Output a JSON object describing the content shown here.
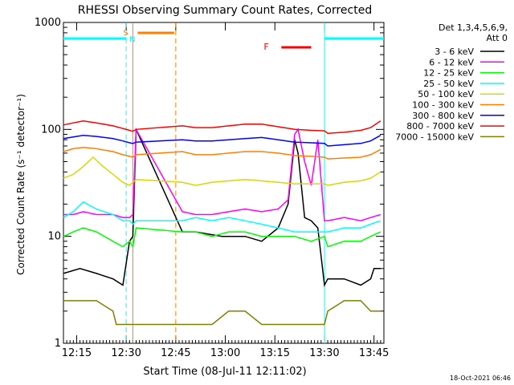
{
  "chart_data": {
    "type": "line",
    "title": "RHESSI Observing Summary Count Rates, Corrected",
    "xlabel": "Start Time (08-Jul-11 12:11:02)",
    "ylabel": "Corrected Count Rate (s⁻¹ detector⁻¹)",
    "ylog": true,
    "ylim": [
      1,
      1000
    ],
    "xlim_minutes": [
      0,
      97
    ],
    "x_ticks": [
      {
        "label": "12:15",
        "min": 4
      },
      {
        "label": "12:30",
        "min": 19
      },
      {
        "label": "12:45",
        "min": 34
      },
      {
        "label": "13:00",
        "min": 49
      },
      {
        "label": "13:15",
        "min": 64
      },
      {
        "label": "13:30",
        "min": 79
      },
      {
        "label": "13:45",
        "min": 94
      }
    ],
    "y_ticks": [
      {
        "label": "1",
        "value": 1
      },
      {
        "label": "10",
        "value": 10
      },
      {
        "label": "100",
        "value": 100
      },
      {
        "label": "1000",
        "value": 1000
      }
    ],
    "legend_header": [
      "Det 1,3,4,5,6,9,",
      "Att 0"
    ],
    "series": [
      {
        "name": "3 - 6 keV",
        "color": "#000000",
        "x": [
          0,
          5,
          10,
          15,
          18,
          20,
          21,
          22,
          36,
          40,
          48,
          55,
          60,
          65,
          68,
          70,
          71,
          73,
          75,
          77,
          79,
          80,
          85,
          90,
          93,
          94,
          96
        ],
        "y": [
          4.5,
          5,
          4.5,
          4,
          3.5,
          9,
          10,
          100,
          11,
          11,
          10,
          10,
          9,
          12,
          20,
          80,
          60,
          15,
          14,
          12,
          3.5,
          4,
          4,
          3.5,
          4,
          5,
          5
        ]
      },
      {
        "name": "6 - 12 keV",
        "color": "#ff00ff",
        "x": [
          0,
          3,
          6,
          10,
          15,
          18,
          20,
          21,
          22,
          36,
          40,
          45,
          50,
          55,
          60,
          65,
          68,
          70,
          71,
          73,
          75,
          77,
          79,
          80,
          85,
          90,
          93,
          96
        ],
        "y": [
          16,
          16,
          17,
          16,
          16,
          15,
          15,
          16,
          100,
          17,
          16,
          16,
          17,
          18,
          17,
          18,
          22,
          90,
          100,
          50,
          30,
          80,
          14,
          14,
          15,
          14,
          15,
          16
        ]
      },
      {
        "name": "12 - 25 keV",
        "color": "#00ff00",
        "x": [
          0,
          3,
          6,
          10,
          15,
          18,
          20,
          21,
          22,
          36,
          40,
          45,
          50,
          55,
          60,
          65,
          70,
          75,
          79,
          80,
          85,
          90,
          93,
          96
        ],
        "y": [
          10,
          11,
          12,
          11,
          9,
          8,
          9,
          8,
          12,
          11,
          11,
          10,
          11,
          11,
          10,
          10,
          10,
          9,
          10,
          8,
          9,
          9,
          10,
          11
        ]
      },
      {
        "name": "25 - 50 keV",
        "color": "#00ffff",
        "x": [
          0,
          3,
          6,
          10,
          15,
          18,
          20,
          21,
          22,
          36,
          40,
          45,
          50,
          55,
          60,
          65,
          70,
          75,
          79,
          80,
          85,
          90,
          93,
          96
        ],
        "y": [
          15,
          17,
          21,
          18,
          16,
          14,
          14,
          13,
          14,
          14,
          15,
          14,
          15,
          14,
          13,
          12,
          11,
          11,
          11,
          11,
          12,
          12,
          13,
          14
        ]
      },
      {
        "name": "50 - 100 keV",
        "color": "#d8d800",
        "x": [
          0,
          3,
          6,
          9,
          12,
          15,
          18,
          20,
          21,
          22,
          36,
          40,
          45,
          50,
          55,
          60,
          65,
          70,
          75,
          79,
          80,
          85,
          90,
          93,
          96
        ],
        "y": [
          35,
          38,
          45,
          55,
          45,
          38,
          32,
          30,
          32,
          34,
          32,
          30,
          32,
          33,
          34,
          33,
          32,
          31,
          31,
          31,
          30,
          32,
          33,
          35,
          40
        ]
      },
      {
        "name": "100 - 300 keV",
        "color": "#ff7f00",
        "x": [
          0,
          3,
          6,
          10,
          15,
          18,
          20,
          21,
          22,
          36,
          40,
          45,
          50,
          55,
          60,
          65,
          70,
          75,
          79,
          80,
          85,
          90,
          93,
          96
        ],
        "y": [
          62,
          66,
          68,
          66,
          62,
          58,
          56,
          55,
          58,
          62,
          58,
          58,
          60,
          62,
          62,
          60,
          57,
          56,
          55,
          53,
          54,
          55,
          58,
          65
        ]
      },
      {
        "name": "300 - 800 keV",
        "color": "#0000ff",
        "x": [
          0,
          3,
          6,
          10,
          15,
          18,
          20,
          21,
          22,
          36,
          40,
          45,
          50,
          55,
          60,
          65,
          70,
          75,
          79,
          80,
          85,
          90,
          93,
          96
        ],
        "y": [
          82,
          85,
          88,
          86,
          82,
          78,
          75,
          74,
          76,
          80,
          78,
          78,
          80,
          82,
          84,
          80,
          76,
          75,
          74,
          70,
          72,
          74,
          78,
          88
        ]
      },
      {
        "name": "800 - 7000 keV",
        "color": "#ff0000",
        "x": [
          0,
          3,
          6,
          10,
          15,
          18,
          20,
          21,
          22,
          36,
          40,
          45,
          50,
          55,
          60,
          65,
          70,
          75,
          79,
          80,
          85,
          90,
          93,
          96
        ],
        "y": [
          110,
          115,
          120,
          115,
          108,
          102,
          98,
          96,
          100,
          108,
          104,
          104,
          108,
          112,
          112,
          106,
          100,
          98,
          97,
          92,
          94,
          98,
          104,
          120
        ]
      },
      {
        "name": "7000 - 15000 keV",
        "color": "#808000",
        "x": [
          0,
          5,
          10,
          15,
          16,
          18,
          20,
          21,
          36,
          40,
          45,
          50,
          55,
          60,
          65,
          70,
          75,
          79,
          80,
          85,
          90,
          93,
          96
        ],
        "y": [
          2.5,
          2.5,
          2.5,
          2,
          1.5,
          1.5,
          1.5,
          1.5,
          1.5,
          1.5,
          1.5,
          2,
          2,
          1.5,
          1.5,
          1.5,
          1.5,
          1.5,
          2,
          2.5,
          2.5,
          2,
          2
        ]
      }
    ],
    "annotations": [
      {
        "label": "S",
        "color": "#ff7f00"
      },
      {
        "label": "N",
        "color": "#00ffff"
      },
      {
        "label": "F",
        "color": "#ff0000"
      }
    ],
    "periods": {
      "night_cyan": [
        [
          0,
          19
        ],
        [
          79,
          97
        ]
      ],
      "saa_orange": [
        [
          21,
          34
        ]
      ],
      "flare_red": [
        [
          65,
          75
        ]
      ]
    }
  },
  "footer": {
    "date_stamp": "18-Oct-2021 06:46"
  }
}
